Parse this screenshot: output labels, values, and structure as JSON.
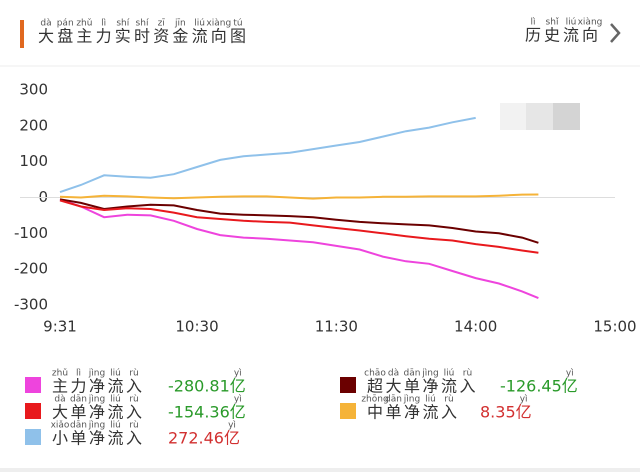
{
  "header": {
    "title": [
      {
        "char": "大",
        "pinyin": "dà"
      },
      {
        "char": "盘",
        "pinyin": "pán"
      },
      {
        "char": "主",
        "pinyin": "zhǔ"
      },
      {
        "char": "力",
        "pinyin": "lì"
      },
      {
        "char": "实",
        "pinyin": "shí"
      },
      {
        "char": "时",
        "pinyin": "shí"
      },
      {
        "char": "资",
        "pinyin": "zī"
      },
      {
        "char": "金",
        "pinyin": "jīn"
      },
      {
        "char": "流",
        "pinyin": "liú"
      },
      {
        "char": "向",
        "pinyin": "xiàng"
      },
      {
        "char": "图",
        "pinyin": "tú"
      }
    ],
    "link": [
      {
        "char": "历",
        "pinyin": "lì"
      },
      {
        "char": "史",
        "pinyin": "shǐ"
      },
      {
        "char": "流",
        "pinyin": "liú"
      },
      {
        "char": "向",
        "pinyin": "xiàng"
      }
    ]
  },
  "chart_data": {
    "type": "line",
    "x": [
      1,
      10,
      20,
      30,
      40,
      50,
      60,
      70,
      80,
      90,
      100,
      110,
      120,
      130,
      140,
      150,
      160,
      170,
      180,
      190,
      200,
      207
    ],
    "xlim": [
      1,
      240
    ],
    "xticks": [
      {
        "value": 1,
        "label": "9:31"
      },
      {
        "value": 60,
        "label": "10:30"
      },
      {
        "value": 120,
        "label": "11:30"
      },
      {
        "value": 180,
        "label": "14:00"
      },
      {
        "value": 240,
        "label": "15:00"
      }
    ],
    "ylim": [
      -300,
      300
    ],
    "yticks": [
      -300,
      -200,
      -100,
      0,
      100,
      200,
      300
    ],
    "zero_line": true,
    "series": [
      {
        "name": [
          {
            "char": "主",
            "pinyin": "zhǔ"
          },
          {
            "char": "力",
            "pinyin": "lì"
          },
          {
            "char": "净",
            "pinyin": "jìng"
          },
          {
            "char": "流",
            "pinyin": "liú"
          },
          {
            "char": "入",
            "pinyin": "rù"
          }
        ],
        "color": "#ee44dd",
        "total": -280.81,
        "total_color": "#2a9a2a",
        "unit": {
          "char": "亿",
          "pinyin": "yì"
        },
        "values": [
          -5,
          -25,
          -55,
          -48,
          -50,
          -65,
          -88,
          -105,
          -112,
          -115,
          -120,
          -125,
          -135,
          -145,
          -165,
          -178,
          -185,
          -205,
          -225,
          -240,
          -262,
          -280.81
        ]
      },
      {
        "name": [
          {
            "char": "超",
            "pinyin": "chāo"
          },
          {
            "char": "大",
            "pinyin": "dà"
          },
          {
            "char": "单",
            "pinyin": "dān"
          },
          {
            "char": "净",
            "pinyin": "jìng"
          },
          {
            "char": "流",
            "pinyin": "liú"
          },
          {
            "char": "入",
            "pinyin": "rù"
          }
        ],
        "color": "#6b0000",
        "total": -126.45,
        "total_color": "#2a9a2a",
        "unit": {
          "char": "亿",
          "pinyin": "yì"
        },
        "values": [
          -5,
          -15,
          -32,
          -25,
          -20,
          -22,
          -35,
          -45,
          -48,
          -50,
          -52,
          -55,
          -62,
          -68,
          -72,
          -75,
          -78,
          -85,
          -95,
          -100,
          -112,
          -126.45
        ]
      },
      {
        "name": [
          {
            "char": "大",
            "pinyin": "dà"
          },
          {
            "char": "单",
            "pinyin": "dān"
          },
          {
            "char": "净",
            "pinyin": "jìng"
          },
          {
            "char": "流",
            "pinyin": "liú"
          },
          {
            "char": "入",
            "pinyin": "rù"
          }
        ],
        "color": "#e8191d",
        "total": -154.36,
        "total_color": "#2a9a2a",
        "unit": {
          "char": "亿",
          "pinyin": "yì"
        },
        "values": [
          -8,
          -25,
          -35,
          -30,
          -32,
          -42,
          -55,
          -60,
          -65,
          -68,
          -70,
          -78,
          -85,
          -92,
          -100,
          -108,
          -115,
          -120,
          -130,
          -138,
          -148,
          -154.36
        ]
      },
      {
        "name": [
          {
            "char": "中",
            "pinyin": "zhōng"
          },
          {
            "char": "单",
            "pinyin": "dān"
          },
          {
            "char": "净",
            "pinyin": "jìng"
          },
          {
            "char": "流",
            "pinyin": "liú"
          },
          {
            "char": "入",
            "pinyin": "rù"
          }
        ],
        "color": "#f5b338",
        "total": 8.35,
        "total_color": "#d23030",
        "unit": {
          "char": "亿",
          "pinyin": "yì"
        },
        "values": [
          2,
          0,
          5,
          3,
          0,
          -2,
          0,
          2,
          3,
          3,
          0,
          -3,
          0,
          0,
          2,
          2,
          3,
          3,
          3,
          5,
          8,
          8.35
        ]
      },
      {
        "name": [
          {
            "char": "小",
            "pinyin": "xiǎo"
          },
          {
            "char": "单",
            "pinyin": "dān"
          },
          {
            "char": "净",
            "pinyin": "jìng"
          },
          {
            "char": "流",
            "pinyin": "liú"
          },
          {
            "char": "入",
            "pinyin": "rù"
          }
        ],
        "color": "#8fc1ea",
        "total": 272.46,
        "total_color": "#d23030",
        "unit": {
          "char": "亿",
          "pinyin": "yì"
        },
        "values": [
          15,
          35,
          62,
          58,
          55,
          65,
          85,
          105,
          115,
          120,
          125,
          135,
          145,
          155,
          170,
          185,
          195,
          210,
          222,
          null,
          null,
          null
        ]
      }
    ]
  }
}
